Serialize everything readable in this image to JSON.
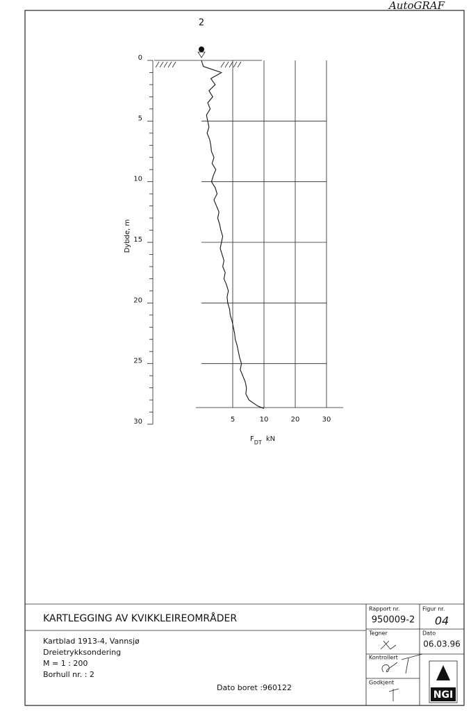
{
  "header": {
    "software": "AutoGRAF",
    "borehole_label": "2"
  },
  "chart_data": {
    "type": "line",
    "xlabel": "F",
    "xlabel_sub": "DT",
    "xunit": "kN",
    "ylabel": "Dybde, m",
    "xlim": [
      0,
      30
    ],
    "xticks": [
      5,
      10,
      20,
      30
    ],
    "ylim": [
      0,
      30
    ],
    "yticks": [
      0,
      5,
      10,
      15,
      20,
      25,
      30
    ],
    "y_inverted": true,
    "grid": true,
    "color": "#111111",
    "y": [
      0,
      0.5,
      1,
      1.5,
      2,
      2.5,
      3,
      3.5,
      4,
      4.5,
      5,
      5.5,
      6,
      6.5,
      7,
      7.5,
      8,
      8.5,
      9,
      9.5,
      10,
      10.5,
      11,
      11.5,
      12,
      12.5,
      13,
      13.5,
      14,
      14.5,
      15,
      15.5,
      16,
      16.5,
      17,
      17.5,
      18,
      18.5,
      19,
      19.5,
      20,
      20.5,
      21,
      21.5,
      22,
      22.5,
      23,
      23.5,
      24,
      24.5,
      25,
      25.5,
      26,
      26.5,
      27,
      27.5,
      28,
      28.5,
      28.7
    ],
    "x": [
      0,
      0.3,
      3.2,
      1.5,
      2.2,
      1.2,
      1.8,
      1.0,
      1.4,
      0.8,
      1.0,
      1.2,
      0.9,
      1.3,
      1.5,
      1.6,
      2.0,
      1.7,
      2.3,
      1.9,
      1.6,
      2.2,
      2.5,
      2.0,
      2.4,
      2.8,
      2.6,
      2.9,
      3.1,
      3.4,
      3.2,
      3.0,
      3.3,
      3.6,
      3.4,
      3.8,
      3.6,
      4.0,
      4.3,
      4.1,
      4.2,
      4.5,
      4.6,
      4.9,
      5.1,
      5.3,
      5.4,
      5.7,
      5.9,
      6.1,
      6.4,
      6.2,
      6.6,
      7.0,
      7.2,
      7.1,
      7.6,
      9.0,
      10
    ]
  },
  "title_block": {
    "project": "KARTLEGGING AV KVIKKLEIREOMRÅDER",
    "lines": [
      "Kartblad 1913-4, Vannsjø",
      "Dreietrykksondering",
      "M = 1 : 200",
      "Borhull nr. : 2"
    ],
    "date_drilled": "Dato boret :960122",
    "report_label": "Rapport nr.",
    "report_no": "950009-2",
    "figure_label": "Figur nr.",
    "figure_no": "04",
    "drawn_label": "Tegner",
    "date_label": "Dato",
    "date": "06.03.96",
    "checked_label": "Kontrollert",
    "approved_label": "Godkjent",
    "logo": "NGI"
  }
}
